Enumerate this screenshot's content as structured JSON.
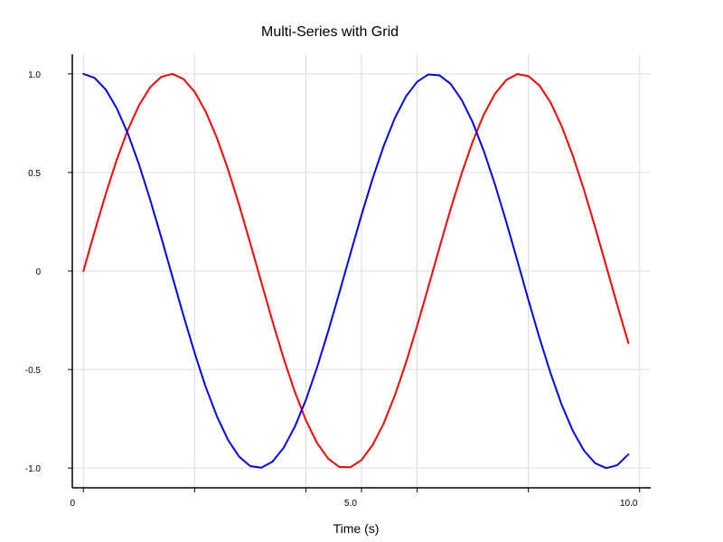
{
  "chart_data": {
    "type": "line",
    "title": "Multi-Series with Grid",
    "xlabel": "Time (s)",
    "ylabel": "",
    "xlim": [
      -0.2,
      10.2
    ],
    "ylim": [
      -1.1,
      1.1
    ],
    "grid": true,
    "x_ticks": [
      {
        "value": 0,
        "label": "0"
      },
      {
        "value": 2.0,
        "label": ""
      },
      {
        "value": 4.0,
        "label": ""
      },
      {
        "value": 5.0,
        "label": "5.0"
      },
      {
        "value": 6.0,
        "label": ""
      },
      {
        "value": 8.0,
        "label": ""
      },
      {
        "value": 10.0,
        "label": "10.0"
      }
    ],
    "y_ticks": [
      {
        "value": -1.0,
        "label": "-1.0"
      },
      {
        "value": -0.5,
        "label": "-0.5"
      },
      {
        "value": 0,
        "label": "0"
      },
      {
        "value": 0.5,
        "label": "0.5"
      },
      {
        "value": 1.0,
        "label": "1.0"
      }
    ],
    "x": [
      0.0,
      0.2,
      0.4,
      0.6,
      0.8,
      1.0,
      1.2,
      1.4,
      1.6,
      1.8,
      2.0,
      2.2,
      2.4,
      2.6,
      2.8,
      3.0,
      3.2,
      3.4,
      3.6,
      3.8,
      4.0,
      4.2,
      4.4,
      4.6,
      4.8,
      5.0,
      5.2,
      5.4,
      5.6,
      5.8,
      6.0,
      6.2,
      6.4,
      6.6,
      6.8,
      7.0,
      7.2,
      7.4,
      7.6,
      7.8,
      8.0,
      8.2,
      8.4,
      8.6,
      8.8,
      9.0,
      9.2,
      9.4,
      9.6,
      9.8
    ],
    "series": [
      {
        "color": "#ff0000",
        "values": [
          0.0,
          0.199,
          0.389,
          0.565,
          0.717,
          0.841,
          0.932,
          0.985,
          1.0,
          0.974,
          0.909,
          0.808,
          0.675,
          0.516,
          0.335,
          0.141,
          -0.058,
          -0.256,
          -0.443,
          -0.612,
          -0.757,
          -0.872,
          -0.952,
          -0.994,
          -0.996,
          -0.959,
          -0.883,
          -0.773,
          -0.631,
          -0.465,
          -0.279,
          -0.083,
          0.117,
          0.312,
          0.494,
          0.657,
          0.794,
          0.899,
          0.968,
          0.999,
          0.989,
          0.941,
          0.855,
          0.734,
          0.585,
          0.412,
          0.223,
          0.025,
          -0.174,
          -0.366
        ]
      },
      {
        "color": "#0000ff",
        "values": [
          1.0,
          0.98,
          0.921,
          0.825,
          0.697,
          0.54,
          0.362,
          0.17,
          -0.029,
          -0.227,
          -0.416,
          -0.589,
          -0.737,
          -0.857,
          -0.942,
          -0.99,
          -0.998,
          -0.967,
          -0.897,
          -0.791,
          -0.654,
          -0.49,
          -0.307,
          -0.112,
          0.087,
          0.284,
          0.469,
          0.635,
          0.776,
          0.886,
          0.96,
          0.997,
          0.993,
          0.95,
          0.869,
          0.754,
          0.608,
          0.439,
          0.252,
          0.055,
          -0.146,
          -0.339,
          -0.519,
          -0.679,
          -0.811,
          -0.911,
          -0.975,
          -1.0,
          -0.985,
          -0.93
        ]
      }
    ]
  }
}
